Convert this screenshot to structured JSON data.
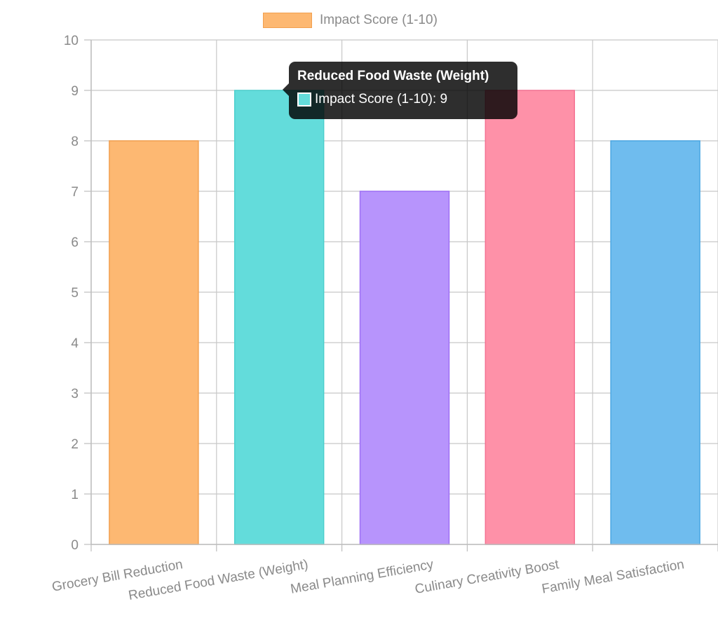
{
  "chart_data": {
    "type": "bar",
    "categories": [
      "Grocery Bill Reduction",
      "Reduced Food Waste (Weight)",
      "Meal Planning Efficiency",
      "Culinary Creativity Boost",
      "Family Meal Satisfaction"
    ],
    "series": [
      {
        "name": "Impact Score (1-10)",
        "values": [
          8,
          9,
          7,
          9,
          8
        ]
      }
    ],
    "bar_colors": [
      "#fdb872",
      "#63dcdb",
      "#b794fc",
      "#fe91a8",
      "#6fbcee"
    ],
    "bar_border_colors": [
      "#f2a04f",
      "#4ccfcd",
      "#9e6ff5",
      "#f47292",
      "#4aa6e2"
    ],
    "ylim": [
      0,
      10
    ],
    "yticks": [
      0,
      1,
      2,
      3,
      4,
      5,
      6,
      7,
      8,
      9,
      10
    ],
    "grid": true,
    "legend_position": "top"
  },
  "legend": {
    "label": "Impact Score (1-10)",
    "color": "#fdb872",
    "border": "#f2a04f"
  },
  "tooltip": {
    "title": "Reduced Food Waste (Weight)",
    "label": "Impact Score (1-10): 9",
    "swatch_color": "#63dcdb"
  }
}
